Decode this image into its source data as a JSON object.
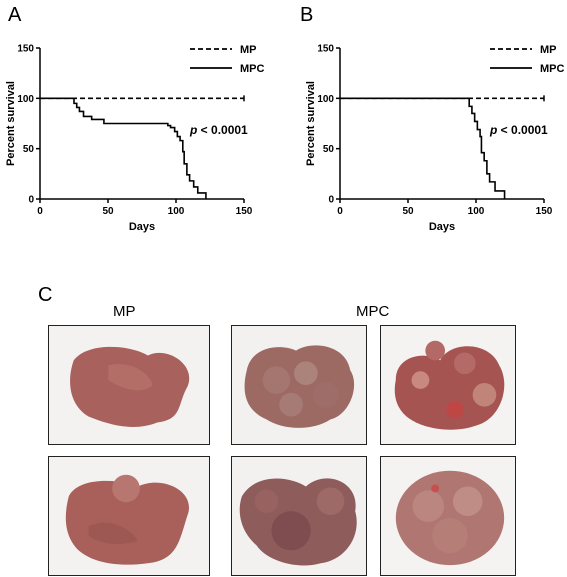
{
  "panels": {
    "a": "A",
    "b": "B",
    "c": "C"
  },
  "chart_data": [
    {
      "type": "line",
      "panel": "A",
      "title": "",
      "xlabel": "Days",
      "ylabel": "Percent survival",
      "xlim": [
        0,
        150
      ],
      "ylim": [
        0,
        150
      ],
      "xticks": [
        0,
        50,
        100,
        150
      ],
      "yticks": [
        0,
        50,
        100,
        150
      ],
      "grid": false,
      "legend_position": "top-right",
      "annotation": {
        "prefix": "p",
        "text": " < 0.0001"
      },
      "series": [
        {
          "name": "MP",
          "style": "dashed",
          "color": "#000000",
          "x": [
            0,
            150
          ],
          "y": [
            100,
            100
          ]
        },
        {
          "name": "MPC",
          "style": "solid",
          "color": "#000000",
          "x": [
            0,
            24,
            25,
            27,
            29,
            32,
            38,
            47,
            65,
            92,
            94,
            96,
            99,
            101,
            103,
            105,
            106,
            108,
            110,
            113,
            116,
            122
          ],
          "y": [
            100,
            100,
            95,
            91,
            87,
            82,
            79,
            75,
            75,
            75,
            73,
            71,
            67,
            62,
            58,
            47,
            35,
            24,
            18,
            12,
            6,
            0
          ]
        }
      ]
    },
    {
      "type": "line",
      "panel": "B",
      "title": "",
      "xlabel": "Days",
      "ylabel": "Percent survival",
      "xlim": [
        0,
        150
      ],
      "ylim": [
        0,
        150
      ],
      "xticks": [
        0,
        50,
        100,
        150
      ],
      "yticks": [
        0,
        50,
        100,
        150
      ],
      "grid": false,
      "legend_position": "top-right",
      "annotation": {
        "prefix": "p",
        "text": " < 0.0001"
      },
      "series": [
        {
          "name": "MP",
          "style": "dashed",
          "color": "#000000",
          "x": [
            0,
            150
          ],
          "y": [
            100,
            100
          ]
        },
        {
          "name": "MPC",
          "style": "solid",
          "color": "#000000",
          "x": [
            0,
            93,
            95,
            97,
            99,
            101,
            103,
            104,
            106,
            108,
            110,
            114,
            121
          ],
          "y": [
            100,
            100,
            92,
            85,
            77,
            69,
            62,
            46,
            38,
            25,
            17,
            8,
            0
          ]
        }
      ]
    }
  ],
  "photos": {
    "mp_heading": "MP",
    "mpc_heading": "MPC",
    "items": [
      {
        "group": "MP",
        "row": 1,
        "col": 1,
        "tint": "#a8615c"
      },
      {
        "group": "MPC",
        "row": 1,
        "col": 1,
        "tint": "#9d6a63"
      },
      {
        "group": "MPC",
        "row": 1,
        "col": 2,
        "tint": "#a65452"
      },
      {
        "group": "MP",
        "row": 2,
        "col": 1,
        "tint": "#a9605a"
      },
      {
        "group": "MPC",
        "row": 2,
        "col": 1,
        "tint": "#8f5c5c"
      },
      {
        "group": "MPC",
        "row": 2,
        "col": 2,
        "tint": "#b07672"
      }
    ]
  }
}
